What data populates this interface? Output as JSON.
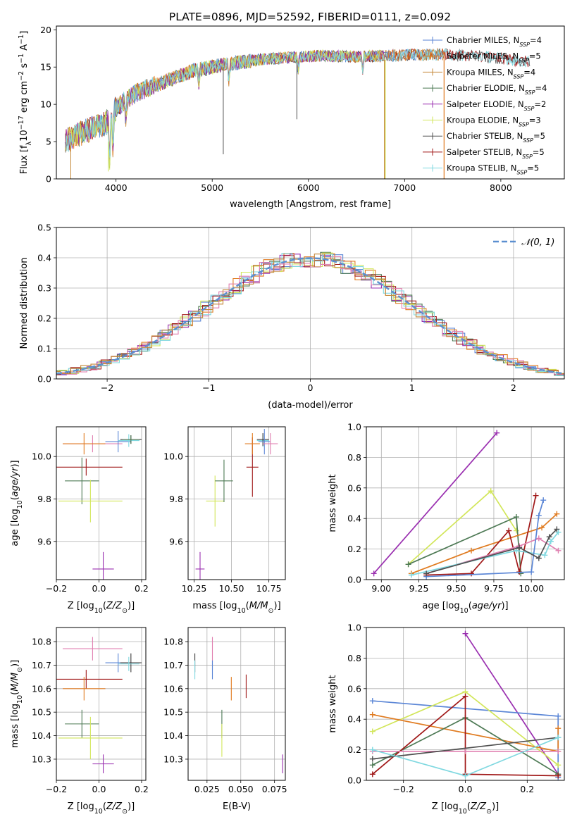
{
  "chart_data": [
    {
      "id": "spectrum",
      "type": "line",
      "title": "PLATE=0896, MJD=52592, FIBERID=0111, z=0.092",
      "xlabel": "wavelength [Angstrom, rest frame]",
      "ylabel": "Flux [f_λ 10^-17 erg cm^-2 s^-1 A^-1]",
      "xlim": [
        3380,
        8660
      ],
      "ylim": [
        0,
        20.5
      ],
      "xticks": [
        4000,
        5000,
        6000,
        7000,
        8000
      ],
      "yticks": [
        0,
        5,
        10,
        15,
        20
      ],
      "grid": false,
      "legend_position": "upper-right",
      "continuum_knots_x": [
        3470,
        3700,
        3900,
        4000,
        4200,
        4500,
        4800,
        5000,
        5200,
        5500,
        5800,
        6100,
        6500,
        7000,
        7400,
        7800,
        8100,
        8400
      ],
      "continuum_knots_y": [
        5.0,
        6.5,
        7.5,
        9.5,
        11.5,
        13.0,
        14.5,
        15.0,
        15.5,
        16.0,
        16.3,
        16.5,
        16.4,
        16.6,
        16.7,
        16.5,
        16.0,
        15.5
      ],
      "series": [
        {
          "name": "Chabrier MILES",
          "nssp": "4",
          "color": "#5b86d6",
          "xmax": 7420
        },
        {
          "name": "Salpeter MILES",
          "nssp": "5",
          "color": "#e07b20",
          "xmax": 7420
        },
        {
          "name": "Kroupa MILES",
          "nssp": "4",
          "color": "#c4883a",
          "xmax": 7420
        },
        {
          "name": "Chabrier ELODIE",
          "nssp": "4",
          "color": "#4e7a55",
          "xmax": 6800
        },
        {
          "name": "Salpeter ELODIE",
          "nssp": "2",
          "color": "#9a2fb0",
          "xmax": 6800
        },
        {
          "name": "Kroupa ELODIE",
          "nssp": "3",
          "color": "#d2e65a",
          "xmax": 6800
        },
        {
          "name": "Chabrier STELIB",
          "nssp": "5",
          "color": "#505050",
          "xmax": 8300
        },
        {
          "name": "Salpeter STELIB",
          "nssp": "5",
          "color": "#a01818",
          "xmax": 8300
        },
        {
          "name": "Kroupa STELIB",
          "nssp": "5",
          "color": "#7fd8e0",
          "xmax": 8300
        }
      ]
    },
    {
      "id": "residuals",
      "type": "histogram",
      "xlabel": "(data-model)/error",
      "ylabel": "Normed distribution",
      "xlim": [
        -2.5,
        2.5
      ],
      "ylim": [
        0,
        0.5
      ],
      "xticks": [
        -2,
        -1,
        0,
        1,
        2
      ],
      "yticks": [
        0.0,
        0.1,
        0.2,
        0.3,
        0.4,
        0.5
      ],
      "grid": true,
      "legend": "𝒩(0, 1)",
      "legend_position": "upper-right",
      "bin_width": 0.1,
      "gaussian": {
        "mu": 0,
        "sigma": 1,
        "color": "#5b8fd0"
      },
      "hist_colors": [
        "#9a2fb0",
        "#5b86d6",
        "#e07b20",
        "#4e7a55",
        "#d2e65a",
        "#a01818",
        "#e07fb0",
        "#7fd8e0",
        "#c4883a"
      ]
    },
    {
      "id": "age_vs_Z",
      "type": "errorbar",
      "xlabel": "Z [log10(Z/Z⊙)]",
      "ylabel": "age [log10(age/yr)]",
      "xlim": [
        -0.2,
        0.22
      ],
      "ylim": [
        9.42,
        10.14
      ],
      "xticks": [
        -0.2,
        0.0,
        0.2
      ],
      "yticks": [
        9.6,
        9.8,
        10.0
      ],
      "grid": true,
      "points": [
        {
          "x": -0.03,
          "y": 10.06,
          "xerr": 0.14,
          "yerr": 0.04,
          "color": "#e07fb0"
        },
        {
          "x": -0.07,
          "y": 10.06,
          "xerr": 0.1,
          "yerr": 0.05,
          "color": "#e07b20"
        },
        {
          "x": 0.09,
          "y": 10.07,
          "xerr": 0.06,
          "yerr": 0.05,
          "color": "#5b86d6"
        },
        {
          "x": 0.15,
          "y": 10.08,
          "xerr": 0.05,
          "yerr": 0.02,
          "color": "#3a3a3a"
        },
        {
          "x": 0.14,
          "y": 10.075,
          "xerr": 0.05,
          "yerr": 0.03,
          "color": "#7fd8e0"
        },
        {
          "x": 0.15,
          "y": 10.08,
          "xerr": 0.04,
          "yerr": 0.02,
          "color": "#4e7a55"
        },
        {
          "x": -0.06,
          "y": 9.95,
          "xerr": 0.17,
          "yerr": 0.04,
          "color": "#a01818"
        },
        {
          "x": -0.08,
          "y": 9.885,
          "xerr": 0.08,
          "yerr": 0.11,
          "color": "#4e7a55"
        },
        {
          "x": -0.04,
          "y": 9.79,
          "xerr": 0.15,
          "yerr": 0.1,
          "color": "#d2e65a"
        },
        {
          "x": 0.02,
          "y": 9.47,
          "xerr": 0.05,
          "yerr": 0.08,
          "color": "#9a2fb0"
        }
      ]
    },
    {
      "id": "age_vs_mass",
      "type": "errorbar",
      "xlabel": "mass [log10(M/M⊙)]",
      "ylabel": "",
      "xlim": [
        10.21,
        10.86
      ],
      "ylim": [
        9.42,
        10.14
      ],
      "xticks": [
        10.25,
        10.5,
        10.75
      ],
      "yticks": [
        9.6,
        9.8,
        10.0
      ],
      "grid": true,
      "points": [
        {
          "x": 10.29,
          "y": 9.47,
          "xerr": 0.03,
          "yerr": 0.08,
          "color": "#9a2fb0"
        },
        {
          "x": 10.39,
          "y": 9.79,
          "xerr": 0.06,
          "yerr": 0.12,
          "color": "#d2e65a"
        },
        {
          "x": 10.45,
          "y": 9.885,
          "xerr": 0.06,
          "yerr": 0.1,
          "color": "#4e7a55"
        },
        {
          "x": 10.64,
          "y": 9.95,
          "xerr": 0.04,
          "yerr": 0.14,
          "color": "#a01818"
        },
        {
          "x": 10.64,
          "y": 10.06,
          "xerr": 0.05,
          "yerr": 0.05,
          "color": "#e07b20"
        },
        {
          "x": 10.71,
          "y": 10.075,
          "xerr": 0.04,
          "yerr": 0.03,
          "color": "#7fd8e0"
        },
        {
          "x": 10.71,
          "y": 10.08,
          "xerr": 0.04,
          "yerr": 0.03,
          "color": "#3a3a3a"
        },
        {
          "x": 10.72,
          "y": 10.07,
          "xerr": 0.04,
          "yerr": 0.06,
          "color": "#5b86d6"
        },
        {
          "x": 10.76,
          "y": 10.06,
          "xerr": 0.05,
          "yerr": 0.05,
          "color": "#e07fb0"
        }
      ]
    },
    {
      "id": "weight_vs_age",
      "type": "line",
      "xlabel": "age [log10(age/yr)]",
      "ylabel": "mass weight",
      "xlim": [
        8.9,
        10.22
      ],
      "ylim": [
        0,
        1
      ],
      "xticks": [
        9.0,
        9.25,
        9.5,
        9.75,
        10.0
      ],
      "yticks": [
        0.0,
        0.2,
        0.4,
        0.6,
        0.8,
        1.0
      ],
      "grid": true,
      "series": [
        {
          "color": "#9a2fb0",
          "x": [
            8.95,
            9.77
          ],
          "y": [
            0.04,
            0.96
          ]
        },
        {
          "color": "#d2e65a",
          "x": [
            9.18,
            9.73,
            9.9
          ],
          "y": [
            0.1,
            0.58,
            0.32
          ]
        },
        {
          "color": "#4e7a55",
          "x": [
            9.18,
            9.9,
            9.93
          ],
          "y": [
            0.1,
            0.41,
            0.04
          ]
        },
        {
          "color": "#e07b20",
          "x": [
            9.2,
            9.6,
            10.07,
            10.17
          ],
          "y": [
            0.04,
            0.19,
            0.34,
            0.43
          ]
        },
        {
          "color": "#a01818",
          "x": [
            9.3,
            9.6,
            9.85,
            9.92,
            10.03
          ],
          "y": [
            0.03,
            0.04,
            0.32,
            0.05,
            0.55
          ]
        },
        {
          "color": "#e07fb0",
          "x": [
            9.3,
            9.92,
            10.05,
            10.18
          ],
          "y": [
            0.04,
            0.22,
            0.27,
            0.19
          ]
        },
        {
          "color": "#7fd8e0",
          "x": [
            9.2,
            9.9,
            10.09,
            10.13,
            10.18
          ],
          "y": [
            0.03,
            0.19,
            0.16,
            0.25,
            0.31
          ]
        },
        {
          "color": "#5b86d6",
          "x": [
            9.3,
            10.0,
            10.05,
            10.08
          ],
          "y": [
            0.02,
            0.05,
            0.42,
            0.52
          ]
        },
        {
          "color": "#505050",
          "x": [
            9.3,
            9.92,
            10.05,
            10.12,
            10.17
          ],
          "y": [
            0.04,
            0.21,
            0.14,
            0.28,
            0.33
          ]
        }
      ]
    },
    {
      "id": "mass_vs_Z",
      "type": "errorbar",
      "xlabel": "Z [log10(Z/Z⊙)]",
      "ylabel": "mass [log10(M/M⊙)]",
      "xlim": [
        -0.2,
        0.22
      ],
      "ylim": [
        10.21,
        10.86
      ],
      "xticks": [
        -0.2,
        0.0,
        0.2
      ],
      "yticks": [
        10.3,
        10.4,
        10.5,
        10.6,
        10.7,
        10.8
      ],
      "grid": true,
      "points": [
        {
          "x": -0.03,
          "y": 10.77,
          "xerr": 0.14,
          "yerr": 0.05,
          "color": "#e07fb0"
        },
        {
          "x": 0.09,
          "y": 10.71,
          "xerr": 0.06,
          "yerr": 0.04,
          "color": "#5b86d6"
        },
        {
          "x": 0.15,
          "y": 10.71,
          "xerr": 0.05,
          "yerr": 0.04,
          "color": "#3a3a3a"
        },
        {
          "x": 0.14,
          "y": 10.705,
          "xerr": 0.05,
          "yerr": 0.03,
          "color": "#7fd8e0"
        },
        {
          "x": -0.06,
          "y": 10.64,
          "xerr": 0.17,
          "yerr": 0.04,
          "color": "#a01818"
        },
        {
          "x": -0.07,
          "y": 10.6,
          "xerr": 0.1,
          "yerr": 0.05,
          "color": "#e07b20"
        },
        {
          "x": -0.08,
          "y": 10.45,
          "xerr": 0.08,
          "yerr": 0.06,
          "color": "#4e7a55"
        },
        {
          "x": -0.04,
          "y": 10.39,
          "xerr": 0.15,
          "yerr": 0.09,
          "color": "#d2e65a"
        },
        {
          "x": 0.02,
          "y": 10.28,
          "xerr": 0.05,
          "yerr": 0.04,
          "color": "#9a2fb0"
        }
      ]
    },
    {
      "id": "mass_vs_EBV",
      "type": "errorbar",
      "xlabel": "E(B-V)",
      "ylabel": "",
      "xlim": [
        0.011,
        0.083
      ],
      "ylim": [
        10.21,
        10.86
      ],
      "xticks": [
        0.025,
        0.05,
        0.075
      ],
      "yticks": [
        10.3,
        10.4,
        10.5,
        10.6,
        10.7,
        10.8
      ],
      "grid": true,
      "points": [
        {
          "x": 0.016,
          "y": 10.71,
          "xerr": 0,
          "yerr": 0.04,
          "color": "#3a3a3a"
        },
        {
          "x": 0.016,
          "y": 10.68,
          "xerr": 0,
          "yerr": 0.04,
          "color": "#7fd8e0"
        },
        {
          "x": 0.029,
          "y": 10.75,
          "xerr": 0,
          "yerr": 0.07,
          "color": "#e07fb0"
        },
        {
          "x": 0.029,
          "y": 10.68,
          "xerr": 0,
          "yerr": 0.04,
          "color": "#5b86d6"
        },
        {
          "x": 0.036,
          "y": 10.45,
          "xerr": 0,
          "yerr": 0.06,
          "color": "#4e7a55"
        },
        {
          "x": 0.036,
          "y": 10.38,
          "xerr": 0,
          "yerr": 0.07,
          "color": "#d2e65a"
        },
        {
          "x": 0.043,
          "y": 10.6,
          "xerr": 0,
          "yerr": 0.05,
          "color": "#e07b20"
        },
        {
          "x": 0.054,
          "y": 10.61,
          "xerr": 0,
          "yerr": 0.05,
          "color": "#a01818"
        },
        {
          "x": 0.081,
          "y": 10.28,
          "xerr": 0,
          "yerr": 0.04,
          "color": "#9a2fb0"
        }
      ]
    },
    {
      "id": "weight_vs_Z",
      "type": "line",
      "xlabel": "Z [log10(Z/Z⊙)]",
      "ylabel": "mass weight",
      "xlim": [
        -0.32,
        0.32
      ],
      "ylim": [
        0,
        1
      ],
      "xticks": [
        -0.2,
        0.0,
        0.2
      ],
      "yticks": [
        0.0,
        0.2,
        0.4,
        0.6,
        0.8,
        1.0
      ],
      "grid": true,
      "series": [
        {
          "color": "#9a2fb0",
          "x": [
            0.0,
            0.3
          ],
          "y": [
            0.96,
            0.04
          ]
        },
        {
          "color": "#5b86d6",
          "x": [
            -0.3,
            0.3,
            0.3
          ],
          "y": [
            0.52,
            0.42,
            0.02
          ]
        },
        {
          "color": "#d2e65a",
          "x": [
            -0.3,
            0.0,
            0.3
          ],
          "y": [
            0.32,
            0.58,
            0.1
          ]
        },
        {
          "color": "#e07b20",
          "x": [
            -0.3,
            0.3,
            0.3
          ],
          "y": [
            0.43,
            0.19,
            0.34
          ]
        },
        {
          "color": "#4e7a55",
          "x": [
            -0.3,
            0.0,
            0.3
          ],
          "y": [
            0.1,
            0.41,
            0.04
          ]
        },
        {
          "color": "#a01818",
          "x": [
            -0.3,
            0.0,
            0.0,
            0.3
          ],
          "y": [
            0.04,
            0.55,
            0.04,
            0.03
          ]
        },
        {
          "color": "#e07fb0",
          "x": [
            -0.3,
            0.0,
            0.3
          ],
          "y": [
            0.19,
            0.19,
            0.19
          ]
        },
        {
          "color": "#505050",
          "x": [
            -0.3,
            0.3
          ],
          "y": [
            0.14,
            0.28
          ]
        },
        {
          "color": "#7fd8e0",
          "x": [
            -0.3,
            0.0,
            0.3
          ],
          "y": [
            0.2,
            0.03,
            0.28
          ]
        }
      ]
    }
  ]
}
